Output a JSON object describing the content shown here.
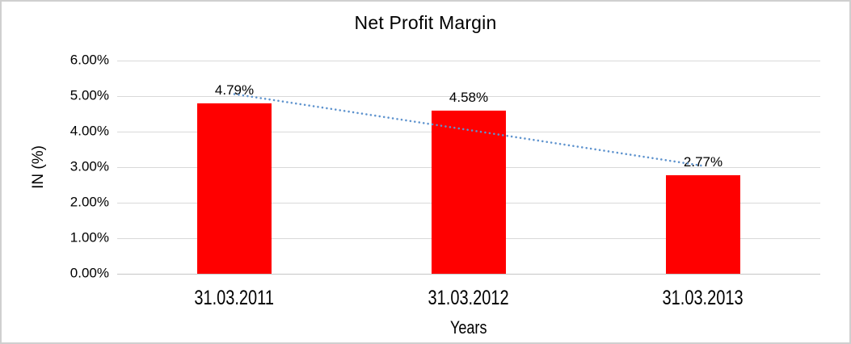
{
  "chart_data": {
    "type": "bar",
    "title": "Net Profit Margin",
    "xlabel": "Years",
    "ylabel": "IN (%)",
    "categories": [
      "31.03.2011",
      "31.03.2012",
      "31.03.2013"
    ],
    "values": [
      4.79,
      4.58,
      2.77
    ],
    "data_labels": [
      "4.79%",
      "4.58%",
      "2.77%"
    ],
    "ylim": [
      0,
      6
    ],
    "ytick_step": 1,
    "ytick_labels": [
      "0.00%",
      "1.00%",
      "2.00%",
      "3.00%",
      "4.00%",
      "5.00%",
      "6.00%"
    ],
    "grid": true,
    "legend": false,
    "bar_color": "#ff0000",
    "gridline_color": "#d9d9d9",
    "trendline": {
      "type": "linear",
      "style": "dotted",
      "color": "#5e93ce"
    }
  }
}
